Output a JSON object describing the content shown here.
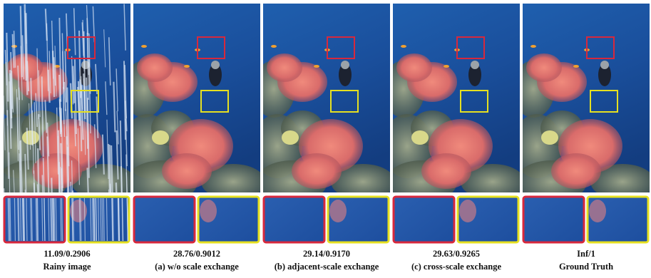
{
  "panels": [
    {
      "score": "11.09/0.2906",
      "caption": "Rainy image"
    },
    {
      "score": "28.76/0.9012",
      "caption": "(a) w/o scale exchange"
    },
    {
      "score": "29.14/0.9170",
      "caption": "(b) adjacent-scale exchange"
    },
    {
      "score": "29.63/0.9265",
      "caption": "(c) cross-scale exchange"
    },
    {
      "score": "Inf/1",
      "caption": "Ground Truth"
    }
  ]
}
